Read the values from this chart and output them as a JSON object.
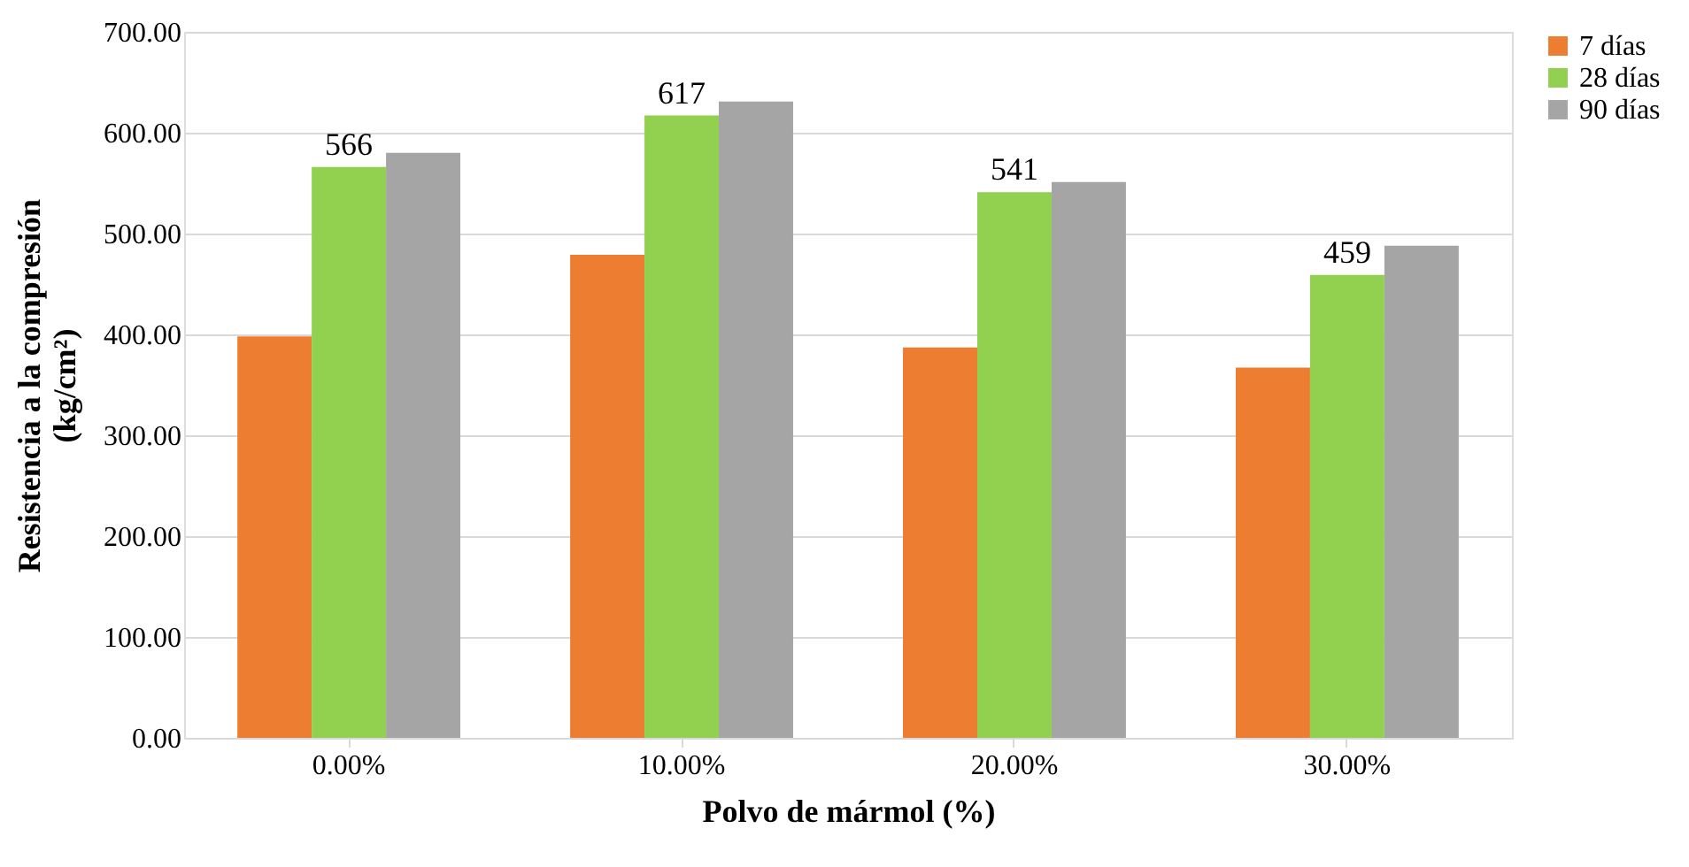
{
  "chart_data": {
    "type": "bar",
    "xlabel": "Polvo de mármol (%)",
    "ylabel": "Resistencia a la compresión\n(kg/cm²)",
    "categories": [
      "0.00%",
      "10.00%",
      "20.00%",
      "30.00%"
    ],
    "series": [
      {
        "name": "7 días",
        "color": "#ed7d31",
        "values": [
          398,
          479,
          387,
          367
        ]
      },
      {
        "name": "28 días",
        "color": "#92d050",
        "values": [
          566,
          617,
          541,
          459
        ],
        "value_labels": [
          "566",
          "617",
          "541",
          "459"
        ]
      },
      {
        "name": "90 días",
        "color": "#a5a5a5",
        "values": [
          580,
          631,
          551,
          488
        ]
      }
    ],
    "ylim": [
      0,
      700
    ],
    "yticks": [
      {
        "value": 0,
        "label": "0.00"
      },
      {
        "value": 100,
        "label": "100.00"
      },
      {
        "value": 200,
        "label": "200.00"
      },
      {
        "value": 300,
        "label": "300.00"
      },
      {
        "value": 400,
        "label": "400.00"
      },
      {
        "value": 500,
        "label": "500.00"
      },
      {
        "value": 600,
        "label": "600.00"
      },
      {
        "value": 700,
        "label": "700.00"
      }
    ],
    "grid": "y",
    "legend": "right"
  }
}
